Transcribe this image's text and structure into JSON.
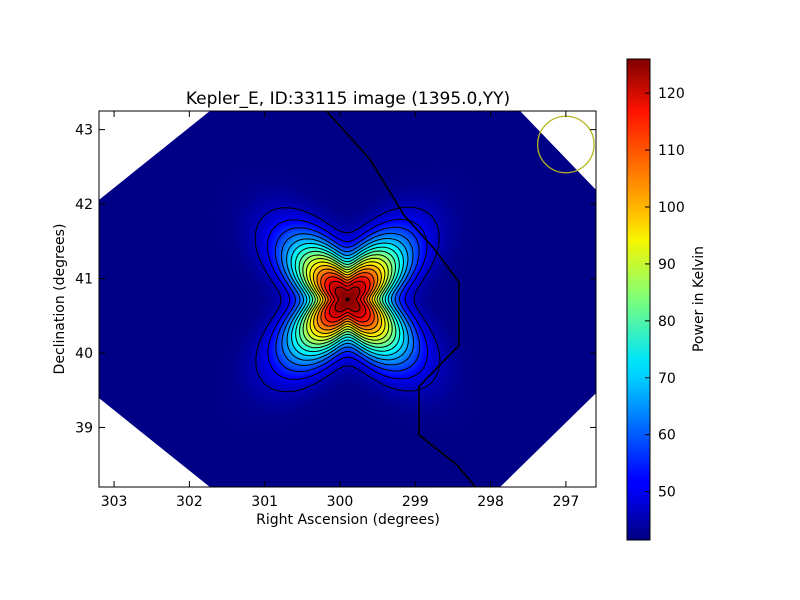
{
  "chart_data": {
    "type": "heatmap",
    "title": "Kepler_E, ID:33115 image (1395.0,YY)",
    "xlabel": "Right Ascension (degrees)",
    "ylabel": "Declination (degrees)",
    "xlim": [
      303.2,
      296.6
    ],
    "ylim": [
      38.2,
      43.25
    ],
    "x_ticks": [
      303,
      302,
      301,
      300,
      299,
      298,
      297
    ],
    "y_ticks": [
      39,
      40,
      41,
      42,
      43
    ],
    "colorbar": {
      "label": "Power in Kelvin",
      "colormap": "jet",
      "range": [
        41.5,
        126
      ],
      "ticks": [
        50,
        60,
        70,
        80,
        90,
        100,
        110,
        120
      ]
    },
    "peak": {
      "ra": 299.9,
      "dec": 40.72,
      "value": 126
    },
    "background_level": 42,
    "contour_count": 17,
    "contour_color": "#000000",
    "beam": {
      "ra": 297.0,
      "dec": 42.8,
      "diameter_deg": 0.75,
      "color": "#b5b520"
    },
    "grid": false,
    "map_shape": "octagon"
  }
}
